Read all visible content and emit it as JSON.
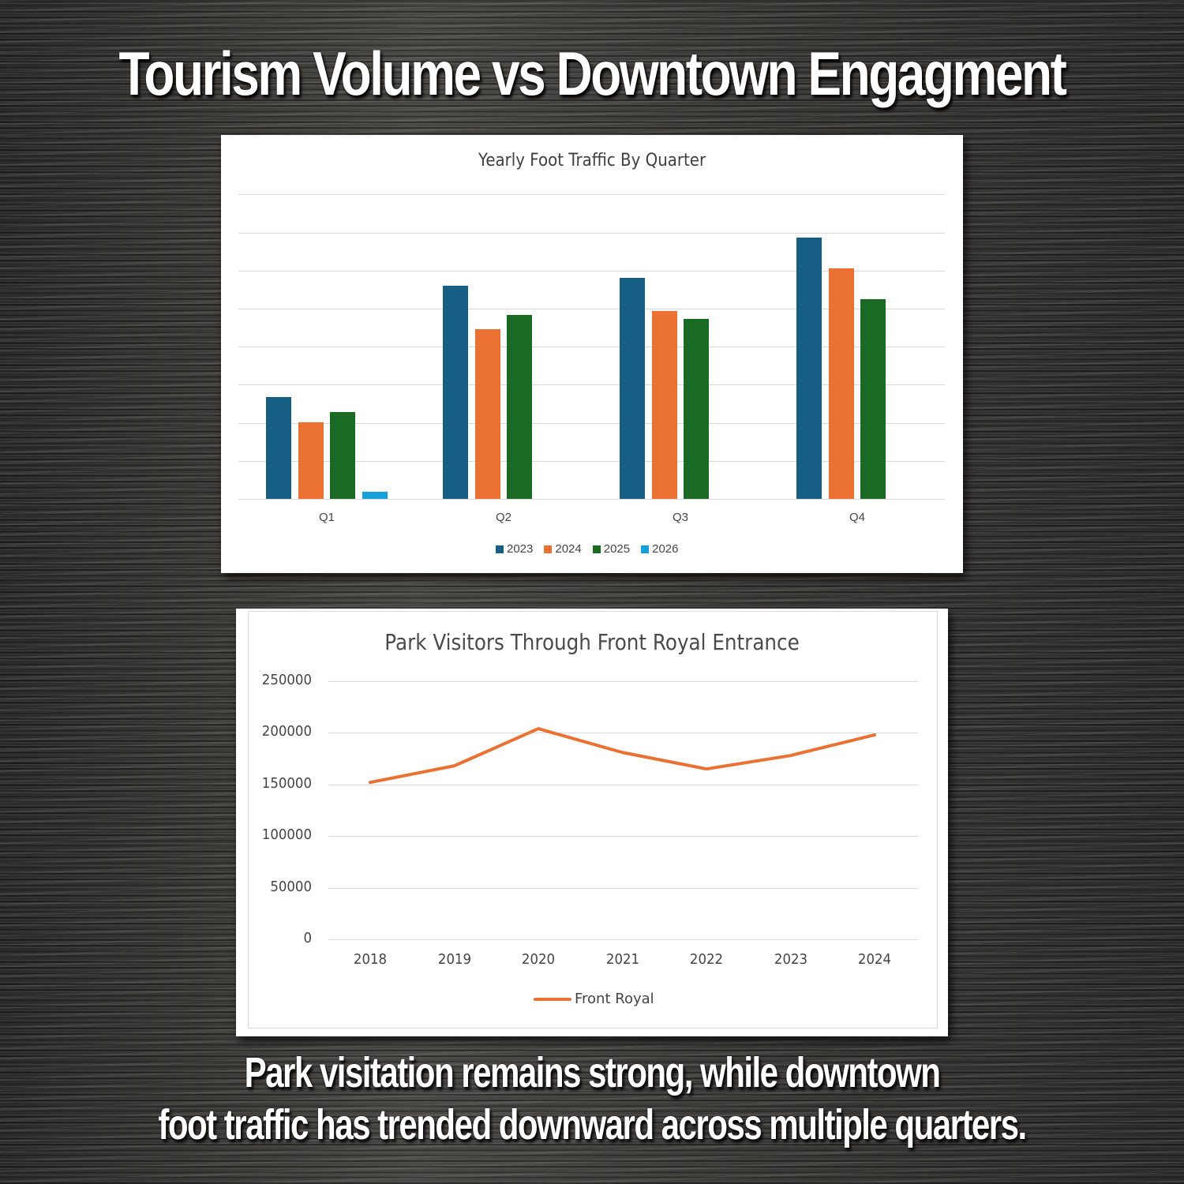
{
  "header": {
    "title": "Tourism Volume vs Downtown Engagment"
  },
  "footer": {
    "caption_line1": "Park visitation remains strong, while downtown",
    "caption_line2": "foot traffic has trended downward across multiple quarters."
  },
  "colors": {
    "series_2023": "#175e84",
    "series_2024": "#ea7131",
    "series_2025": "#1a6a24",
    "series_2026": "#15a0d9",
    "line": "#ea7131",
    "grid": "#d9d9d9"
  },
  "chart_data": [
    {
      "type": "bar",
      "title": "Yearly Foot Traffic By Quarter",
      "xlabel": "",
      "ylabel": "",
      "y_axis_labels_shown": false,
      "y_units": "gridline units (no axis labels shown)",
      "ylim": [
        0,
        8
      ],
      "grid": true,
      "legend_position": "bottom",
      "categories": [
        "Q1",
        "Q2",
        "Q3",
        "Q4"
      ],
      "series": [
        {
          "name": "2023",
          "values": [
            2.68,
            5.6,
            5.81,
            6.87
          ]
        },
        {
          "name": "2024",
          "values": [
            2.01,
            4.46,
            4.94,
            6.06
          ]
        },
        {
          "name": "2025",
          "values": [
            2.28,
            4.83,
            4.73,
            5.25
          ]
        },
        {
          "name": "2026",
          "values": [
            0.19,
            null,
            null,
            null
          ]
        }
      ]
    },
    {
      "type": "line",
      "title": "Park Visitors Through Front Royal Entrance",
      "xlabel": "",
      "ylabel": "",
      "ylim": [
        0,
        250000
      ],
      "yticks": [
        "0",
        "50000",
        "100000",
        "150000",
        "200000",
        "250000"
      ],
      "grid": true,
      "legend_position": "bottom",
      "x": [
        "2018",
        "2019",
        "2020",
        "2021",
        "2022",
        "2023",
        "2024"
      ],
      "series": [
        {
          "name": "Front Royal",
          "values": [
            152000,
            168000,
            204000,
            181000,
            165000,
            178000,
            198000
          ]
        }
      ]
    }
  ]
}
